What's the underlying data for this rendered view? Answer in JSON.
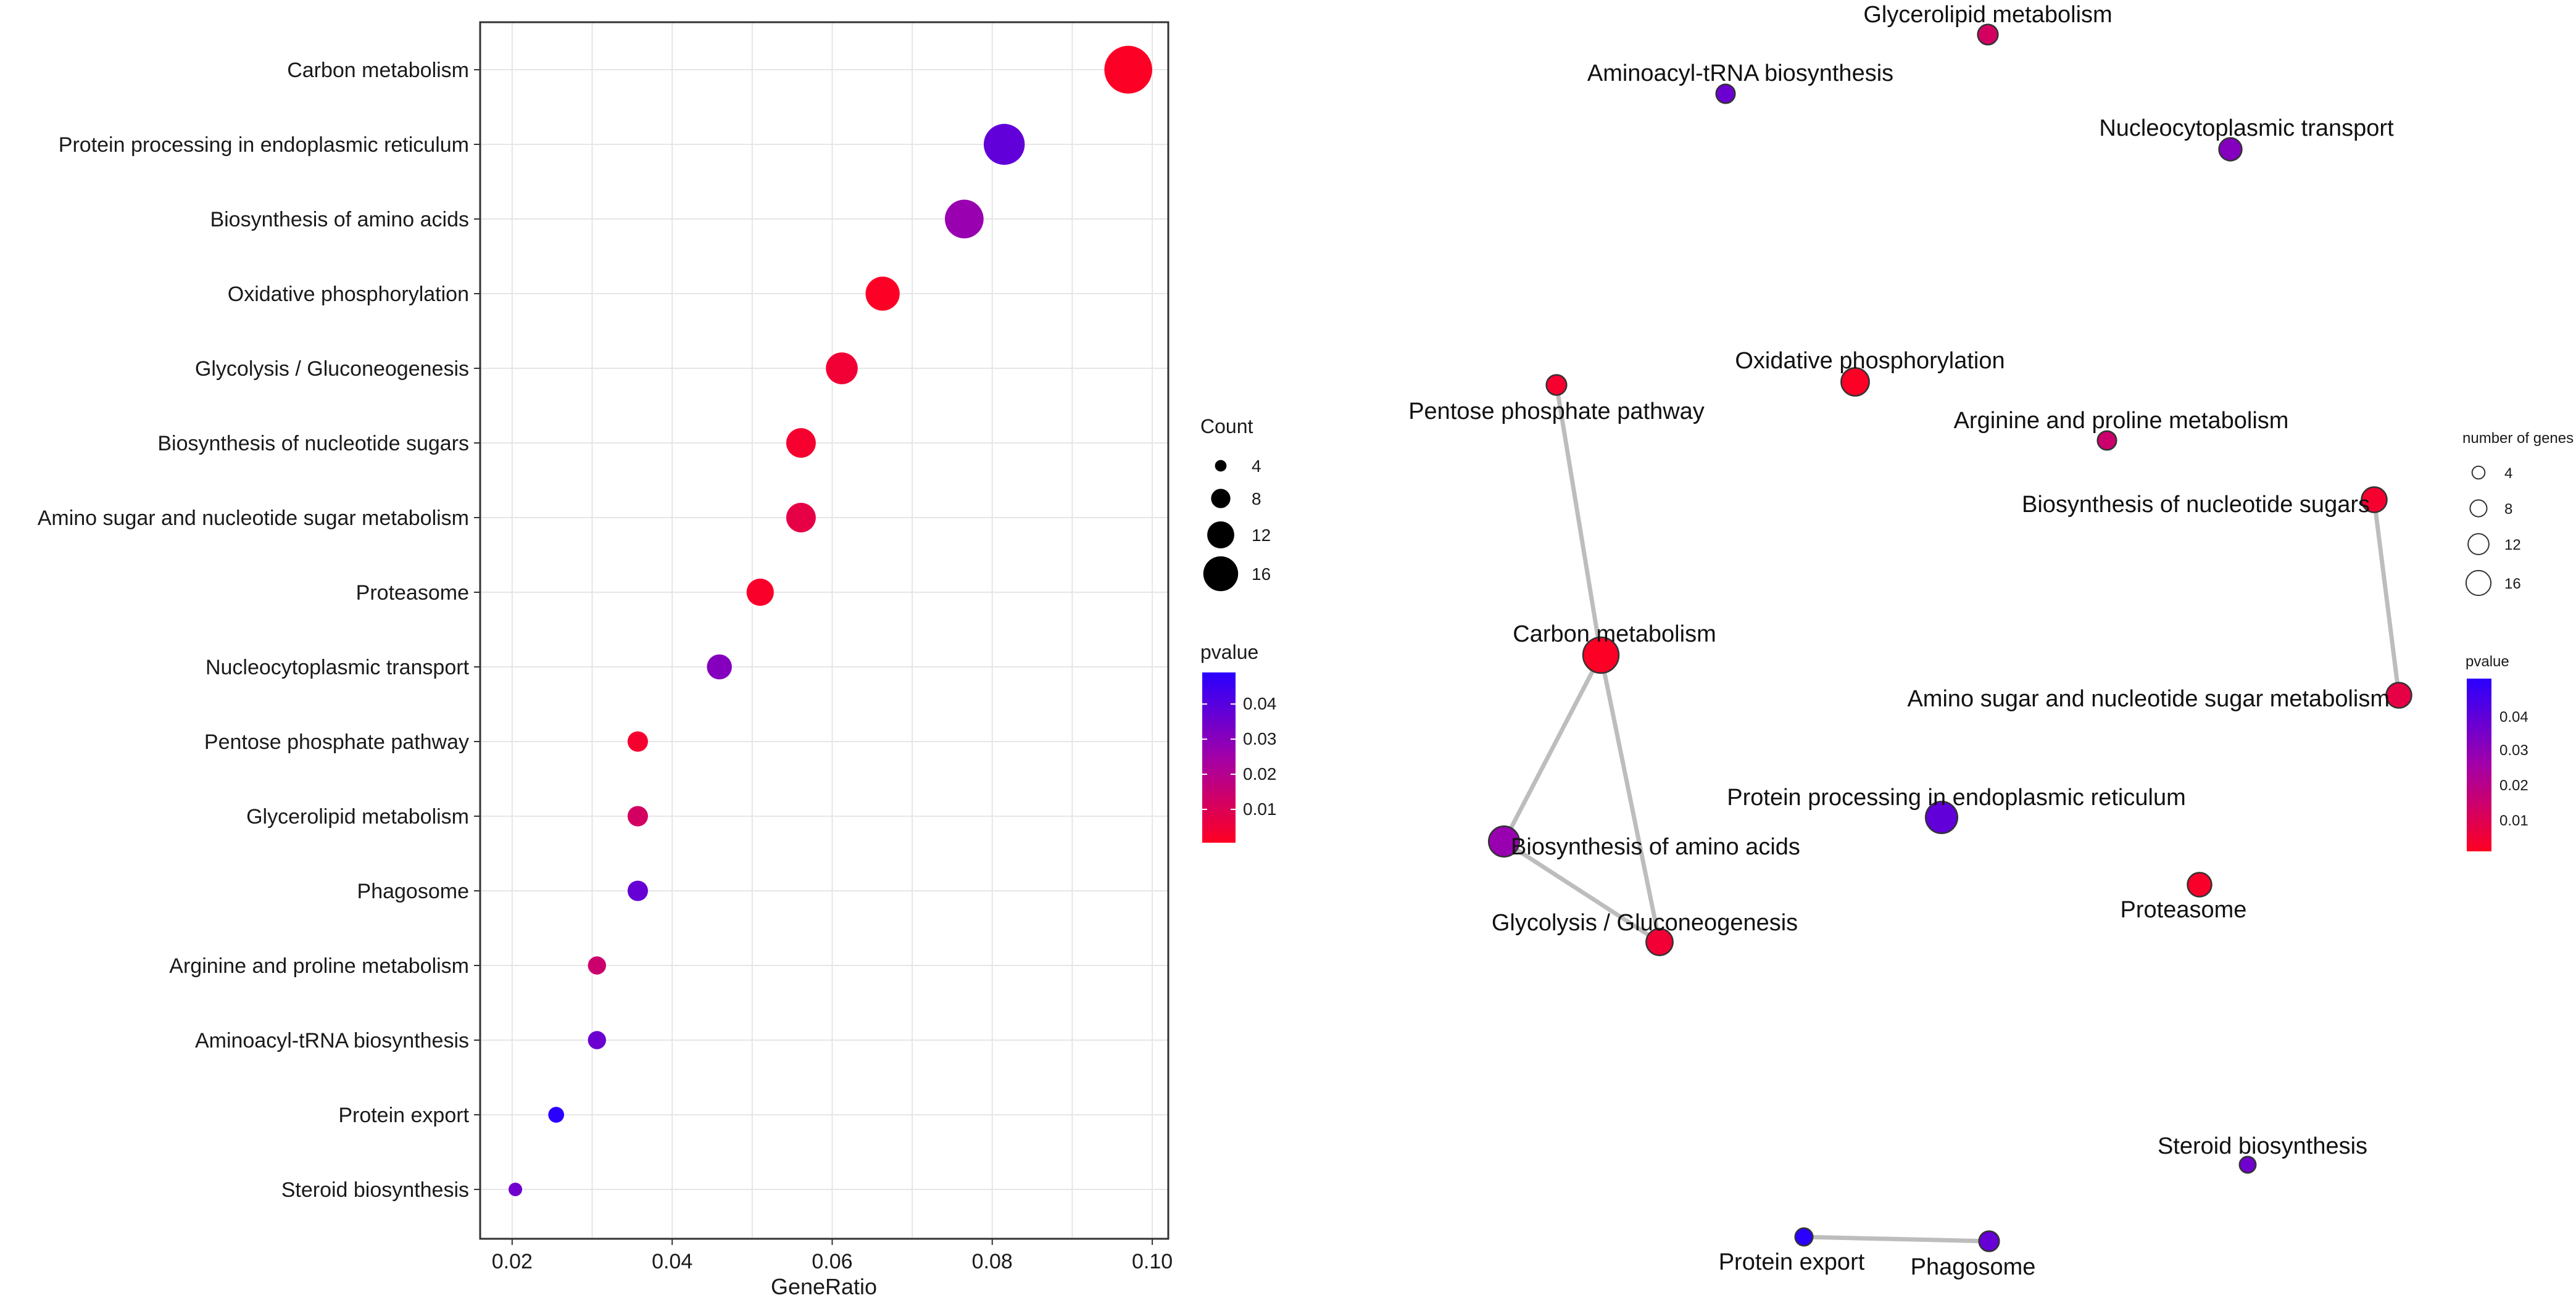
{
  "chart_data": [
    {
      "type": "scatter",
      "subtype": "dotplot",
      "xlabel": "GeneRatio",
      "xlim": [
        0.016,
        0.102
      ],
      "xticks": [
        0.02,
        0.04,
        0.06,
        0.08,
        0.1
      ],
      "xtick_labels": [
        "0.02",
        "0.04",
        "0.06",
        "0.08",
        "0.10"
      ],
      "categories": [
        "Carbon metabolism",
        "Protein processing in endoplasmic reticulum",
        "Biosynthesis of amino acids",
        "Oxidative phosphorylation",
        "Glycolysis / Gluconeogenesis",
        "Biosynthesis of nucleotide sugars",
        "Amino sugar and nucleotide sugar metabolism",
        "Proteasome",
        "Nucleocytoplasmic transport",
        "Pentose phosphate pathway",
        "Glycerolipid metabolism",
        "Phagosome",
        "Arginine and proline metabolism",
        "Aminoacyl-tRNA biosynthesis",
        "Protein export",
        "Steroid biosynthesis"
      ],
      "gene_ratio": [
        0.097,
        0.0815,
        0.0765,
        0.0663,
        0.0612,
        0.0561,
        0.0561,
        0.051,
        0.0459,
        0.0357,
        0.0357,
        0.0357,
        0.0306,
        0.0306,
        0.0255,
        0.0204
      ],
      "count": [
        19,
        16,
        15,
        13,
        12,
        11,
        11,
        10,
        9,
        7,
        7,
        7,
        6,
        6,
        5,
        4
      ],
      "pvalue": [
        0.001,
        0.038,
        0.027,
        0.001,
        0.004,
        0.003,
        0.007,
        0.002,
        0.031,
        0.003,
        0.012,
        0.037,
        0.014,
        0.036,
        0.049,
        0.035
      ],
      "legend_count": {
        "title": "Count",
        "values": [
          4,
          8,
          12,
          16
        ],
        "labels": [
          "4",
          "8",
          "12",
          "16"
        ]
      },
      "legend_pvalue": {
        "title": "pvalue",
        "range": [
          0.0005,
          0.049
        ],
        "ticks": [
          0.01,
          0.02,
          0.03,
          0.04
        ],
        "labels": [
          "0.01",
          "0.02",
          "0.03",
          "0.04"
        ]
      },
      "colors": {
        "low_p": "#ff0000",
        "high_p": "#0000ff",
        "grid": "#e6e6e6",
        "border": "#333333"
      }
    },
    {
      "type": "network",
      "nodes": [
        {
          "id": "glycerolipid",
          "label": "Glycerolipid metabolism",
          "count": 7,
          "pvalue": 0.012
        },
        {
          "id": "aminoacyl",
          "label": "Aminoacyl-tRNA biosynthesis",
          "count": 6,
          "pvalue": 0.036
        },
        {
          "id": "nucleocyto",
          "label": "Nucleocytoplasmic transport",
          "count": 9,
          "pvalue": 0.031
        },
        {
          "id": "oxphos",
          "label": "Oxidative phosphorylation",
          "count": 13,
          "pvalue": 0.001
        },
        {
          "id": "pentose",
          "label": "Pentose phosphate pathway",
          "count": 7,
          "pvalue": 0.003
        },
        {
          "id": "arginine",
          "label": "Arginine and proline metabolism",
          "count": 6,
          "pvalue": 0.014
        },
        {
          "id": "nucsugars",
          "label": "Biosynthesis of nucleotide sugars",
          "count": 11,
          "pvalue": 0.003
        },
        {
          "id": "carbon",
          "label": "Carbon metabolism",
          "count": 19,
          "pvalue": 0.001
        },
        {
          "id": "aminosugar",
          "label": "Amino sugar and nucleotide sugar metabolism",
          "count": 11,
          "pvalue": 0.007
        },
        {
          "id": "protproc",
          "label": "Protein processing in endoplasmic reticulum",
          "count": 16,
          "pvalue": 0.038
        },
        {
          "id": "aminoacids",
          "label": "Biosynthesis of amino acids",
          "count": 15,
          "pvalue": 0.027
        },
        {
          "id": "proteasome",
          "label": "Proteasome",
          "count": 10,
          "pvalue": 0.002
        },
        {
          "id": "glycolysis",
          "label": "Glycolysis / Gluconeogenesis",
          "count": 12,
          "pvalue": 0.004
        },
        {
          "id": "steroid",
          "label": "Steroid biosynthesis",
          "count": 4,
          "pvalue": 0.035
        },
        {
          "id": "protexport",
          "label": "Protein export",
          "count": 5,
          "pvalue": 0.049
        },
        {
          "id": "phagosome",
          "label": "Phagosome",
          "count": 7,
          "pvalue": 0.037
        }
      ],
      "edges": [
        [
          "pentose",
          "carbon"
        ],
        [
          "carbon",
          "aminoacids"
        ],
        [
          "carbon",
          "glycolysis"
        ],
        [
          "aminoacids",
          "glycolysis"
        ],
        [
          "nucsugars",
          "aminosugar"
        ],
        [
          "protexport",
          "phagosome"
        ]
      ],
      "legend_size": {
        "title": "number of genes",
        "values": [
          4,
          8,
          12,
          16
        ],
        "labels": [
          "4",
          "8",
          "12",
          "16"
        ]
      },
      "legend_pvalue": {
        "title": "pvalue",
        "labels": [
          "0.04",
          "0.03",
          "0.02",
          "0.01"
        ]
      },
      "colors": {
        "edge": "#bdbdbd",
        "node_outline": "#333333"
      }
    }
  ]
}
